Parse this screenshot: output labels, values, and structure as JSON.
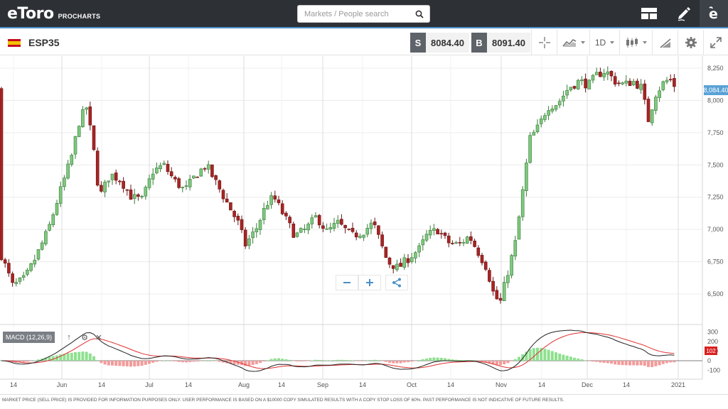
{
  "app": {
    "brand": "eToro",
    "product": "PROCHARTS"
  },
  "search": {
    "placeholder": "Markets / People search"
  },
  "top_icons": [
    "layout-icon",
    "pencil-icon",
    "etoro-logo-icon"
  ],
  "instrument": {
    "symbol": "ESP35",
    "sell_tag": "S",
    "sell_price": "8084.40",
    "buy_tag": "B",
    "buy_price": "8091.40",
    "timeframe": "1D"
  },
  "chart_data": {
    "type": "candlestick",
    "y_axis": {
      "ticks": [
        6500,
        6750,
        7000,
        7250,
        7500,
        7750,
        8000,
        8250
      ],
      "tick_labels": [
        "6,500",
        "6,750",
        "7,000",
        "7,250",
        "7,500",
        "7,750",
        "8,000",
        "8,250"
      ],
      "range": [
        6350,
        8300
      ]
    },
    "x_axis": {
      "labels": [
        "14",
        "Jun",
        "14",
        "Jul",
        "14",
        "Aug",
        "14",
        "Sep",
        "14",
        "Oct",
        "14",
        "Nov",
        "14",
        "Dec",
        "14",
        "2021"
      ]
    },
    "last_price": "8,084.40",
    "up_color": "#7ec87e",
    "down_color": "#a82424",
    "macd": {
      "label": "MACD (12,26,9)",
      "ticks": [
        300,
        200,
        100,
        0,
        -100
      ],
      "tick_labels": [
        "300",
        "200",
        "100",
        "0",
        "-100"
      ],
      "last_badge": "102",
      "macd_color": "#222222",
      "signal_color": "#e03030",
      "hist_up_color": "#8fe08f",
      "hist_down_color": "#f39a9a"
    }
  },
  "disclaimer": "MARKET PRICE (SELL PRICE) IS PROVIDED FOR INFORMATION PURPOSES ONLY. USER PERFORMANCE IS BASED ON A $10000 COPY SIMULATED RESULTS WITH A COPY STOP LOSS OF 60%. PAST PERFORMANCE IS NOT INDICATIVE OF FUTURE RESULTS."
}
